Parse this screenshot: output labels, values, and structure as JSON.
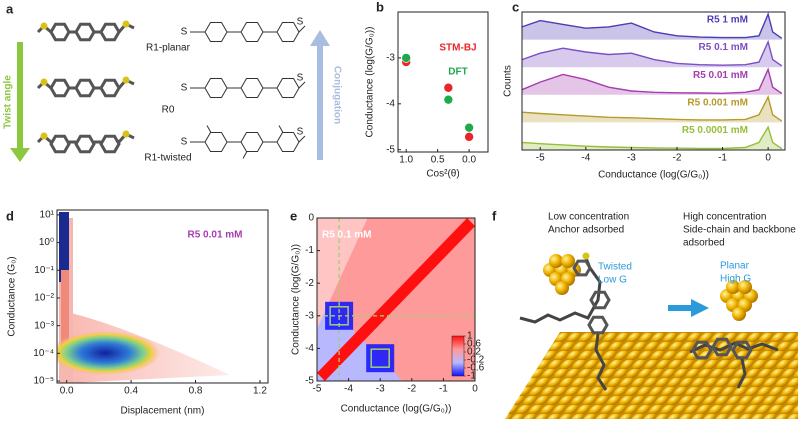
{
  "panel_a": {
    "letter": "a",
    "left_label": "Twist angle",
    "right_label": "Conjugation",
    "atom": "S",
    "molecules": [
      "R1-planar",
      "R0",
      "R1-twisted"
    ]
  },
  "chart_data": [
    {
      "type": "scatter",
      "letter": "b",
      "x_label": "Cos²(θ)",
      "y_label": "Conductance (log(G/G₀))",
      "xlim": [
        1.13,
        -0.3
      ],
      "xticks": [
        {
          "value": 1,
          "label": "1.0"
        },
        {
          "value": 0.5,
          "label": "0.5"
        },
        {
          "value": 0,
          "label": "0.0"
        }
      ],
      "ylim": [
        -5.05,
        -2
      ],
      "yticks": [
        -5,
        -4,
        -3
      ],
      "series": [
        {
          "name": "STM-BJ",
          "color": "#e8262a",
          "x": [
            1,
            0.33,
            0
          ],
          "values": [
            -3.09,
            -3.65,
            -4.72
          ]
        },
        {
          "name": "DFT",
          "color": "#1faa4a",
          "x": [
            1,
            0.33,
            0
          ],
          "values": [
            -3.0,
            -3.91,
            -4.52
          ]
        }
      ]
    },
    {
      "type": "ridge",
      "letter": "c",
      "x_label": "Conductance (log(G/G₀))",
      "y_label": "Counts",
      "xlim": [
        -5.4,
        0.37
      ],
      "xticks": [
        -5,
        -4,
        -3,
        -2,
        -1,
        0
      ],
      "x": [
        -5.4,
        -5,
        -4.5,
        -4,
        -3.5,
        -3,
        -2.5,
        -2,
        -1.5,
        -1,
        -0.5,
        -0.2,
        0,
        0.1,
        0.3
      ],
      "series": [
        {
          "name": "R5 1 mM",
          "color": "#4b3db4",
          "values": [
            0.5,
            0.75,
            0.6,
            0.45,
            0.5,
            0.65,
            0.3,
            0.15,
            0.1,
            0.08,
            0.08,
            0.15,
            1,
            0.3,
            0.05
          ]
        },
        {
          "name": "R5 0.1 mM",
          "color": "#7a4fc4",
          "values": [
            0.3,
            0.55,
            0.75,
            0.6,
            0.5,
            0.55,
            0.3,
            0.15,
            0.1,
            0.08,
            0.1,
            0.2,
            1,
            0.3,
            0.05
          ]
        },
        {
          "name": "R5 0.01 mM",
          "color": "#a63cb0",
          "values": [
            0.2,
            0.5,
            0.8,
            0.6,
            0.3,
            0.15,
            0.1,
            0.08,
            0.07,
            0.06,
            0.1,
            0.2,
            1,
            0.3,
            0.05
          ]
        },
        {
          "name": "R5 0.001 mM",
          "color": "#b59a2c",
          "values": [
            0.4,
            0.35,
            0.3,
            0.25,
            0.2,
            0.18,
            0.15,
            0.12,
            0.1,
            0.1,
            0.12,
            0.3,
            1,
            0.3,
            0.05
          ]
        },
        {
          "name": "R5 0.0001 mM",
          "color": "#95bf3a",
          "values": [
            0.3,
            0.25,
            0.2,
            0.15,
            0.12,
            0.1,
            0.08,
            0.07,
            0.06,
            0.06,
            0.1,
            0.3,
            0.9,
            0.3,
            0.05
          ]
        }
      ]
    },
    {
      "type": "density",
      "letter": "d",
      "label": "R5 0.01 mM",
      "label_color": "#a63cb0",
      "x_label": "Displacement (nm)",
      "y_label": "Conductance (G₀)",
      "xlim": [
        -0.06,
        1.25
      ],
      "xticks": [
        {
          "value": 0,
          "label": "0.0"
        },
        0.4,
        0.8,
        1.2
      ],
      "log_y": true,
      "ylim": [
        8.5e-06,
        15
      ],
      "yticks": [
        {
          "value": 10,
          "label": "10¹"
        },
        {
          "value": 1,
          "label": "10⁰"
        },
        {
          "value": 0.1,
          "label": "10⁻¹"
        },
        {
          "value": 0.01,
          "label": "10⁻²"
        },
        {
          "value": 0.001,
          "label": "10⁻³"
        },
        {
          "value": 0.0001,
          "label": "10⁻⁴"
        },
        {
          "value": 1e-05,
          "label": "10⁻⁵"
        }
      ]
    },
    {
      "type": "correlation",
      "letter": "e",
      "label": "R5 0.1 mM",
      "x_label": "Conductance (log(G/G₀))",
      "y_label": "Conductance (log(G/G₀))",
      "xlim": [
        -5,
        0
      ],
      "ylim": [
        -5,
        0
      ],
      "xticks": [
        -5,
        -4,
        -3,
        -2,
        -1,
        0
      ],
      "yticks": [
        -5,
        -4,
        -3,
        -2,
        -1,
        0
      ],
      "highlight_peaks": [
        -4.3,
        -3
      ],
      "colorbar": {
        "lim": [
          -1,
          1
        ],
        "ticks": [
          1,
          0.6,
          0.2,
          -0.2,
          -0.6,
          -1
        ],
        "colors": [
          "#1010ff",
          "#b8b8ff",
          "#ff9a9a",
          "#ff1010"
        ]
      }
    }
  ],
  "panel_f": {
    "letter": "f",
    "left_text": [
      "Low concentration",
      "Anchor adsorbed"
    ],
    "right_text": [
      "High concentration",
      "Side-chain and backbone",
      "adsorbed"
    ],
    "left_state": [
      "Twisted",
      "Low G"
    ],
    "right_state": [
      "Planar",
      "High G"
    ]
  }
}
